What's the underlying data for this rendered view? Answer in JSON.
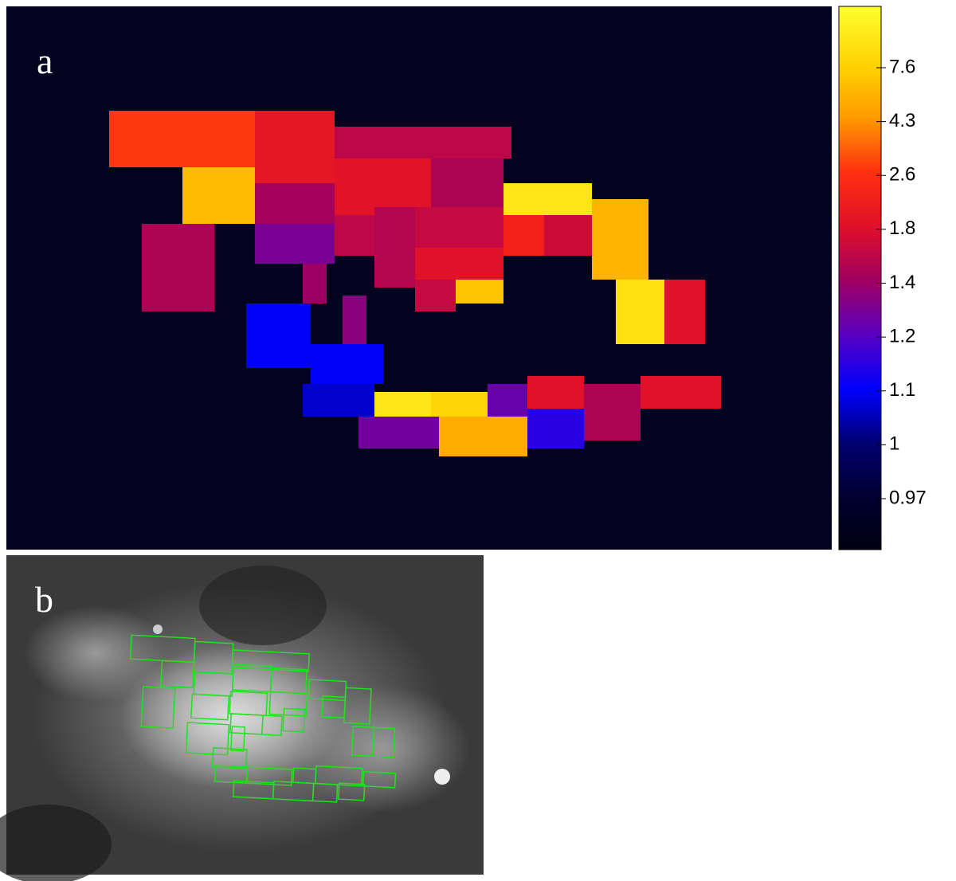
{
  "chart_data": {
    "type": "heatmap",
    "panel_label": "a",
    "values": [
      2.8,
      2.0,
      1.6,
      6.5,
      1.9,
      1.5,
      1.45,
      10,
      6,
      1.5,
      1.3,
      1.6,
      1.55,
      1.65,
      2.3,
      1.7,
      1.85,
      1.4,
      1.65,
      7,
      9.5,
      1.85,
      1.35,
      1.1,
      1.1,
      1.07,
      10,
      8,
      1.25,
      1.85,
      1.5,
      1.85,
      1.28,
      5.5,
      1.15
    ],
    "clim": [
      0.94,
      13
    ],
    "cticks": [
      0.97,
      1,
      1.1,
      1.2,
      1.4,
      1.8,
      2.6,
      4.3,
      7.6
    ]
  },
  "inset": {
    "panel_label": "b"
  }
}
